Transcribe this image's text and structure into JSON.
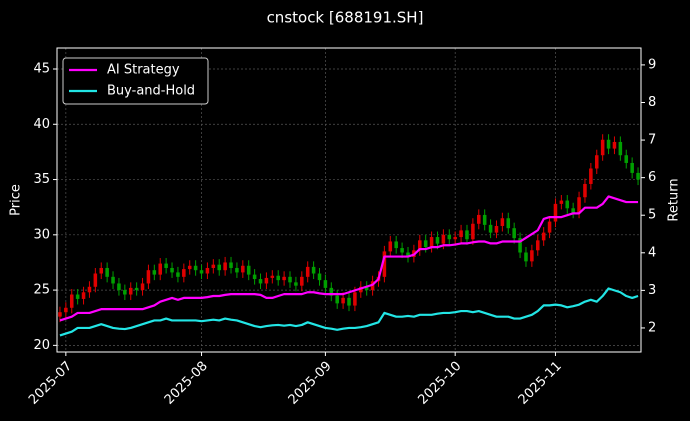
{
  "chart_data": {
    "type": "candlestick",
    "title": "cnstock [688191.SH]",
    "ylabel": "Price",
    "y2label": "Return",
    "categories": [
      null,
      "2025-07",
      null,
      null,
      null,
      null,
      null,
      null,
      null,
      null,
      null,
      null,
      null,
      null,
      null,
      null,
      null,
      null,
      null,
      null,
      null,
      null,
      null,
      null,
      "2025-08",
      null,
      null,
      null,
      null,
      null,
      null,
      null,
      null,
      null,
      null,
      null,
      null,
      null,
      null,
      null,
      null,
      null,
      null,
      null,
      null,
      "2025-09",
      null,
      null,
      null,
      null,
      null,
      null,
      null,
      null,
      null,
      null,
      null,
      null,
      null,
      null,
      null,
      null,
      null,
      null,
      null,
      null,
      null,
      "2025-10",
      null,
      null,
      null,
      null,
      null,
      null,
      null,
      null,
      null,
      null,
      null,
      null,
      null,
      null,
      null,
      null,
      "2025-11",
      null,
      null,
      null,
      null,
      null,
      null,
      null,
      null,
      null,
      null,
      null,
      null,
      null,
      null
    ],
    "open": [
      22.6,
      23.0,
      23.4,
      24.6,
      24.2,
      24.8,
      25.3,
      26.5,
      27.0,
      26.2,
      25.6,
      25.0,
      24.6,
      25.2,
      25.0,
      25.6,
      26.8,
      26.4,
      27.4,
      27.0,
      26.6,
      26.2,
      26.9,
      27.2,
      26.8,
      26.5,
      27.0,
      27.3,
      26.8,
      27.5,
      27.0,
      26.6,
      27.2,
      26.4,
      26.0,
      25.6,
      26.1,
      26.3,
      25.9,
      26.2,
      25.7,
      25.4,
      26.2,
      27.1,
      26.5,
      25.9,
      25.2,
      24.5,
      23.8,
      24.3,
      23.6,
      24.8,
      25.3,
      25.0,
      25.8,
      26.2,
      28.5,
      29.4,
      28.8,
      28.4,
      28.0,
      28.6,
      29.5,
      28.9,
      29.8,
      29.2,
      30.0,
      29.6,
      29.8,
      30.4,
      29.6,
      31.0,
      31.8,
      30.9,
      30.2,
      30.8,
      31.5,
      30.6,
      29.7,
      28.4,
      27.6,
      28.6,
      29.5,
      30.2,
      31.2,
      32.8,
      33.1,
      32.4,
      32.0,
      33.4,
      34.6,
      36.0,
      37.2,
      38.6,
      37.8,
      38.4,
      37.2,
      36.5,
      35.6
    ],
    "high": [
      23.5,
      23.9,
      25.1,
      25.1,
      25.3,
      25.8,
      27.0,
      27.5,
      27.5,
      26.7,
      26.1,
      25.5,
      25.7,
      25.7,
      26.1,
      27.3,
      27.3,
      27.9,
      27.9,
      27.5,
      27.1,
      27.4,
      27.7,
      27.7,
      27.3,
      27.5,
      27.8,
      27.8,
      28.0,
      28.0,
      27.5,
      27.7,
      27.7,
      26.9,
      26.5,
      26.6,
      26.8,
      26.8,
      26.7,
      26.7,
      26.2,
      26.7,
      27.6,
      27.6,
      27.0,
      26.4,
      25.7,
      25.0,
      24.8,
      24.8,
      25.3,
      25.8,
      25.8,
      26.3,
      26.7,
      29.0,
      29.9,
      29.9,
      29.3,
      28.9,
      29.1,
      30.0,
      30.0,
      30.3,
      30.3,
      30.5,
      30.5,
      30.3,
      30.9,
      30.9,
      31.5,
      32.3,
      32.3,
      31.4,
      31.3,
      32.0,
      32.0,
      31.1,
      30.2,
      28.9,
      29.1,
      30.0,
      30.7,
      31.7,
      33.3,
      33.6,
      33.6,
      32.9,
      33.9,
      35.1,
      36.5,
      37.7,
      39.1,
      39.1,
      38.9,
      38.9,
      37.7,
      37.0,
      36.1
    ],
    "low": [
      22.1,
      22.5,
      22.9,
      23.7,
      23.7,
      24.3,
      24.8,
      26.0,
      25.7,
      25.1,
      24.5,
      24.1,
      24.1,
      24.5,
      24.5,
      25.1,
      25.9,
      25.9,
      26.5,
      26.1,
      25.7,
      25.7,
      26.4,
      26.3,
      26.0,
      26.0,
      26.5,
      26.3,
      26.3,
      26.5,
      26.1,
      26.1,
      25.9,
      25.5,
      25.1,
      25.1,
      25.6,
      25.4,
      25.4,
      25.2,
      24.9,
      24.9,
      25.7,
      26.0,
      25.4,
      24.7,
      24.0,
      23.3,
      23.3,
      23.1,
      23.1,
      24.3,
      24.5,
      24.5,
      25.3,
      25.7,
      28.0,
      28.3,
      27.9,
      27.5,
      27.5,
      28.1,
      28.4,
      28.4,
      28.7,
      28.7,
      29.1,
      29.1,
      29.3,
      29.1,
      29.1,
      30.5,
      30.4,
      29.7,
      29.7,
      30.3,
      30.1,
      29.2,
      27.9,
      27.1,
      27.1,
      28.1,
      29.0,
      29.7,
      30.7,
      32.3,
      31.9,
      31.5,
      31.5,
      32.9,
      34.1,
      35.5,
      36.7,
      37.3,
      37.3,
      36.7,
      36.0,
      35.1,
      34.5
    ],
    "close": [
      23.0,
      23.4,
      24.6,
      24.2,
      24.8,
      25.3,
      26.5,
      27.0,
      26.2,
      25.6,
      25.0,
      24.6,
      25.2,
      25.0,
      25.6,
      26.8,
      26.4,
      27.4,
      27.0,
      26.6,
      26.2,
      26.9,
      27.2,
      26.8,
      26.5,
      27.0,
      27.3,
      26.8,
      27.5,
      27.0,
      26.6,
      27.2,
      26.4,
      26.0,
      25.6,
      26.1,
      26.3,
      25.9,
      26.2,
      25.7,
      25.4,
      26.2,
      27.1,
      26.5,
      25.9,
      25.2,
      24.5,
      23.8,
      24.3,
      23.6,
      24.8,
      25.3,
      25.0,
      25.8,
      26.2,
      28.5,
      29.4,
      28.8,
      28.4,
      28.0,
      28.6,
      29.5,
      28.9,
      29.8,
      29.2,
      30.0,
      29.6,
      29.8,
      30.4,
      29.6,
      31.0,
      31.8,
      30.9,
      30.2,
      30.8,
      31.5,
      30.6,
      29.7,
      28.4,
      27.6,
      28.6,
      29.5,
      30.2,
      31.2,
      32.8,
      33.1,
      32.4,
      32.0,
      33.4,
      34.6,
      36.0,
      37.2,
      38.6,
      37.8,
      38.4,
      37.2,
      36.5,
      35.6,
      35.0
    ],
    "up_color": "#e00000",
    "down_color": "#00a000",
    "series": [
      {
        "name": "AI Strategy",
        "color": "#ff00ff",
        "axis": "y2",
        "values": [
          2.2,
          2.25,
          2.3,
          2.4,
          2.4,
          2.4,
          2.45,
          2.5,
          2.5,
          2.5,
          2.5,
          2.5,
          2.5,
          2.5,
          2.5,
          2.55,
          2.6,
          2.7,
          2.75,
          2.8,
          2.75,
          2.8,
          2.8,
          2.8,
          2.8,
          2.82,
          2.85,
          2.85,
          2.88,
          2.9,
          2.9,
          2.9,
          2.9,
          2.9,
          2.88,
          2.8,
          2.8,
          2.85,
          2.9,
          2.9,
          2.9,
          2.9,
          2.95,
          2.95,
          2.92,
          2.9,
          2.9,
          2.9,
          2.9,
          2.95,
          3.0,
          3.05,
          3.1,
          3.15,
          3.3,
          3.9,
          3.9,
          3.9,
          3.9,
          3.9,
          3.95,
          4.1,
          4.1,
          4.15,
          4.15,
          4.2,
          4.2,
          4.22,
          4.25,
          4.25,
          4.28,
          4.3,
          4.3,
          4.25,
          4.25,
          4.3,
          4.3,
          4.3,
          4.3,
          4.4,
          4.5,
          4.6,
          4.9,
          4.95,
          4.95,
          4.95,
          5.0,
          5.05,
          5.05,
          5.2,
          5.2,
          5.2,
          5.3,
          5.5,
          5.45,
          5.4,
          5.35,
          5.35,
          5.35
        ]
      },
      {
        "name": "Buy-and-Hold",
        "color": "#22e5e5",
        "axis": "y2",
        "values": [
          1.8,
          1.85,
          1.9,
          2.0,
          2.0,
          2.0,
          2.05,
          2.1,
          2.05,
          2.0,
          1.98,
          1.97,
          2.0,
          2.05,
          2.1,
          2.15,
          2.2,
          2.2,
          2.25,
          2.2,
          2.2,
          2.2,
          2.2,
          2.2,
          2.18,
          2.2,
          2.22,
          2.2,
          2.25,
          2.22,
          2.2,
          2.15,
          2.1,
          2.05,
          2.02,
          2.05,
          2.07,
          2.08,
          2.06,
          2.08,
          2.05,
          2.08,
          2.15,
          2.1,
          2.05,
          2.0,
          1.98,
          1.95,
          1.98,
          2.0,
          2.0,
          2.02,
          2.05,
          2.1,
          2.15,
          2.4,
          2.35,
          2.3,
          2.3,
          2.32,
          2.3,
          2.35,
          2.35,
          2.35,
          2.38,
          2.4,
          2.4,
          2.42,
          2.45,
          2.45,
          2.42,
          2.45,
          2.4,
          2.35,
          2.3,
          2.3,
          2.3,
          2.25,
          2.25,
          2.3,
          2.35,
          2.45,
          2.6,
          2.6,
          2.62,
          2.6,
          2.55,
          2.58,
          2.62,
          2.7,
          2.75,
          2.7,
          2.85,
          3.05,
          3.0,
          2.95,
          2.85,
          2.8,
          2.85
        ]
      }
    ],
    "ylim": [
      19.4,
      46.9
    ],
    "yticks": [
      20,
      25,
      30,
      35,
      40,
      45
    ],
    "y2lim": [
      1.36,
      9.45
    ],
    "y2ticks": [
      2,
      3,
      4,
      5,
      6,
      7,
      8,
      9
    ],
    "grid": true,
    "legend": "upper left"
  }
}
